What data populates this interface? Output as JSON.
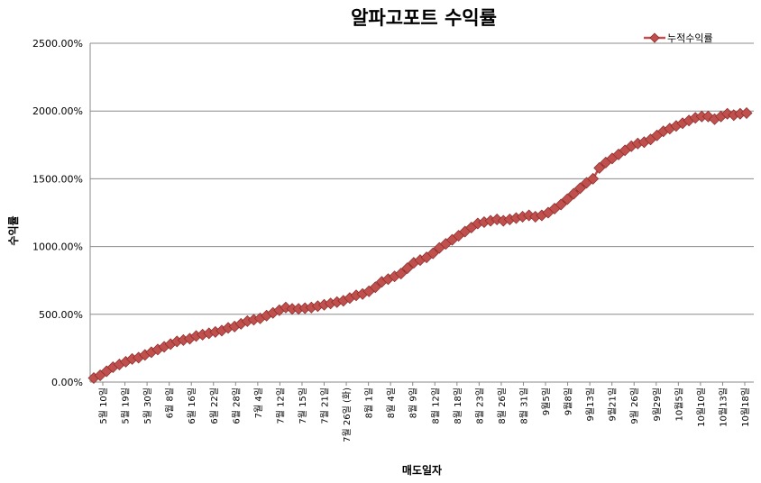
{
  "chart_data": {
    "type": "line",
    "title": "알파고포트 수익률",
    "xlabel": "매도일자",
    "ylabel": "수익률",
    "ylim": [
      0,
      2500
    ],
    "yticks": [
      "0.00%",
      "500.00%",
      "1000.00%",
      "1500.00%",
      "2000.00%",
      "2500.00%"
    ],
    "grid": "horizontal",
    "legend_position": "top-right",
    "series_color": "#c0504d",
    "series": [
      {
        "name": "누적수익률",
        "values": [
          30,
          50,
          80,
          110,
          130,
          150,
          170,
          180,
          200,
          220,
          240,
          260,
          280,
          300,
          310,
          320,
          340,
          350,
          360,
          370,
          380,
          400,
          410,
          430,
          450,
          460,
          470,
          490,
          510,
          530,
          550,
          540,
          540,
          545,
          550,
          560,
          570,
          580,
          590,
          600,
          620,
          640,
          650,
          670,
          700,
          740,
          760,
          780,
          800,
          840,
          880,
          900,
          920,
          950,
          990,
          1020,
          1050,
          1080,
          1110,
          1140,
          1170,
          1180,
          1190,
          1200,
          1190,
          1200,
          1210,
          1220,
          1230,
          1220,
          1230,
          1250,
          1280,
          1310,
          1350,
          1390,
          1430,
          1470,
          1500,
          1580,
          1620,
          1650,
          1680,
          1710,
          1740,
          1760,
          1770,
          1790,
          1820,
          1850,
          1870,
          1890,
          1910,
          1930,
          1950,
          1960,
          1960,
          1940,
          1960,
          1980,
          1970,
          1980,
          1985
        ]
      }
    ],
    "x_tick_labels": [
      "5월 10일",
      "5월 19일",
      "5월 30일",
      "6월 8일",
      "6월 16일",
      "6월 22일",
      "6월 28일",
      "7월 4일",
      "7월 12일",
      "7월 15일",
      "7월 21일",
      "7월 26일 (화)",
      "8월 1일",
      "8월 4일",
      "8월 9일",
      "8월 12일",
      "8월 18일",
      "8월 23일",
      "8월 26일",
      "8월 31일",
      "9월5일",
      "9월8일",
      "9월13일",
      "9월21일",
      "9월 26일",
      "9월29일",
      "10월5일",
      "10월10일",
      "10월13일",
      "10월18일"
    ]
  }
}
